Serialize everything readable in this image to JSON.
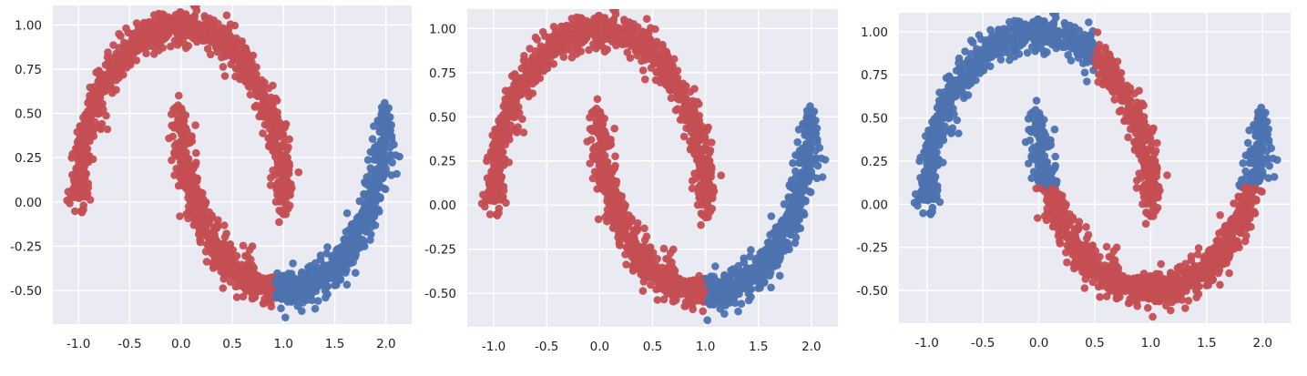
{
  "chart_data": [
    {
      "type": "scatter",
      "grid": true,
      "colors": {
        "background": "#eaeaf2",
        "grid": "#ffffff",
        "red": "#c44e52",
        "blue": "#4c72b0"
      },
      "xlim": [
        -1.25,
        2.25
      ],
      "ylim": [
        -0.69,
        1.11
      ],
      "x_ticks": [
        {
          "value": -1.0,
          "label": "-1.0"
        },
        {
          "value": -0.5,
          "label": "-0.5"
        },
        {
          "value": 0.0,
          "label": "0.0"
        },
        {
          "value": 0.5,
          "label": "0.5"
        },
        {
          "value": 1.0,
          "label": "1.0"
        },
        {
          "value": 1.5,
          "label": "1.5"
        },
        {
          "value": 2.0,
          "label": "2.0"
        }
      ],
      "y_ticks": [
        {
          "value": 1.0,
          "label": "1.00"
        },
        {
          "value": 0.75,
          "label": "0.75"
        },
        {
          "value": 0.5,
          "label": "0.50"
        },
        {
          "value": 0.25,
          "label": "0.25"
        },
        {
          "value": 0.0,
          "label": "0.00"
        },
        {
          "value": -0.25,
          "label": "-0.25"
        },
        {
          "value": -0.5,
          "label": "-0.50"
        }
      ],
      "series": [
        {
          "color": "red",
          "description": "upper moon and lower moon for x < 0.9",
          "points": 1540
        },
        {
          "color": "blue",
          "description": "lower moon for x >= 0.9",
          "points": 460
        }
      ],
      "split_x": 0.9,
      "cluster_rule": "lower_moon_right_blue"
    },
    {
      "type": "scatter",
      "grid": true,
      "colors": {
        "background": "#eaeaf2",
        "grid": "#ffffff",
        "red": "#c44e52",
        "blue": "#4c72b0"
      },
      "xlim": [
        -1.25,
        2.25
      ],
      "ylim": [
        -0.69,
        1.11
      ],
      "x_ticks": [
        {
          "value": -1.0,
          "label": "-1.0"
        },
        {
          "value": -0.5,
          "label": "-0.5"
        },
        {
          "value": 0.0,
          "label": "0.0"
        },
        {
          "value": 0.5,
          "label": "0.5"
        },
        {
          "value": 1.0,
          "label": "1.0"
        },
        {
          "value": 1.5,
          "label": "1.5"
        },
        {
          "value": 2.0,
          "label": "2.0"
        }
      ],
      "y_ticks": [
        {
          "value": 1.0,
          "label": "1.00"
        },
        {
          "value": 0.75,
          "label": "0.75"
        },
        {
          "value": 0.5,
          "label": "0.50"
        },
        {
          "value": 0.25,
          "label": "0.25"
        },
        {
          "value": 0.0,
          "label": "0.00"
        },
        {
          "value": -0.25,
          "label": "-0.25"
        },
        {
          "value": -0.5,
          "label": "-0.50"
        }
      ],
      "series": [
        {
          "color": "red",
          "description": "upper moon and lower moon for x < 1.0",
          "points": 1580
        },
        {
          "color": "blue",
          "description": "lower moon for x >= 1.0",
          "points": 420
        }
      ],
      "split_x": 1.0,
      "cluster_rule": "lower_moon_right_blue"
    },
    {
      "type": "scatter",
      "grid": true,
      "colors": {
        "background": "#eaeaf2",
        "grid": "#ffffff",
        "red": "#c44e52",
        "blue": "#4c72b0"
      },
      "xlim": [
        -1.25,
        2.25
      ],
      "ylim": [
        -0.69,
        1.11
      ],
      "x_ticks": [
        {
          "value": -1.0,
          "label": "-1.0"
        },
        {
          "value": -0.5,
          "label": "-0.5"
        },
        {
          "value": 0.0,
          "label": "0.0"
        },
        {
          "value": 0.5,
          "label": "0.5"
        },
        {
          "value": 1.0,
          "label": "1.0"
        },
        {
          "value": 1.5,
          "label": "1.5"
        },
        {
          "value": 2.0,
          "label": "2.0"
        }
      ],
      "y_ticks": [
        {
          "value": 1.0,
          "label": "1.00"
        },
        {
          "value": 0.75,
          "label": "0.75"
        },
        {
          "value": 0.5,
          "label": "0.50"
        },
        {
          "value": 0.25,
          "label": "0.25"
        },
        {
          "value": 0.0,
          "label": "0.00"
        },
        {
          "value": -0.25,
          "label": "-0.25"
        },
        {
          "value": -0.5,
          "label": "-0.50"
        }
      ],
      "series": [
        {
          "color": "blue",
          "description": "upper moon for x < 0.5 and lower moon for y > 0.1",
          "points": 900
        },
        {
          "color": "red",
          "description": "upper moon for x >= 0.5 and lower moon for y <= 0.1",
          "points": 1100
        }
      ],
      "split_x": 0.5,
      "split_y": 0.1,
      "cluster_rule": "upper_left_and_lower_top_blue"
    }
  ]
}
